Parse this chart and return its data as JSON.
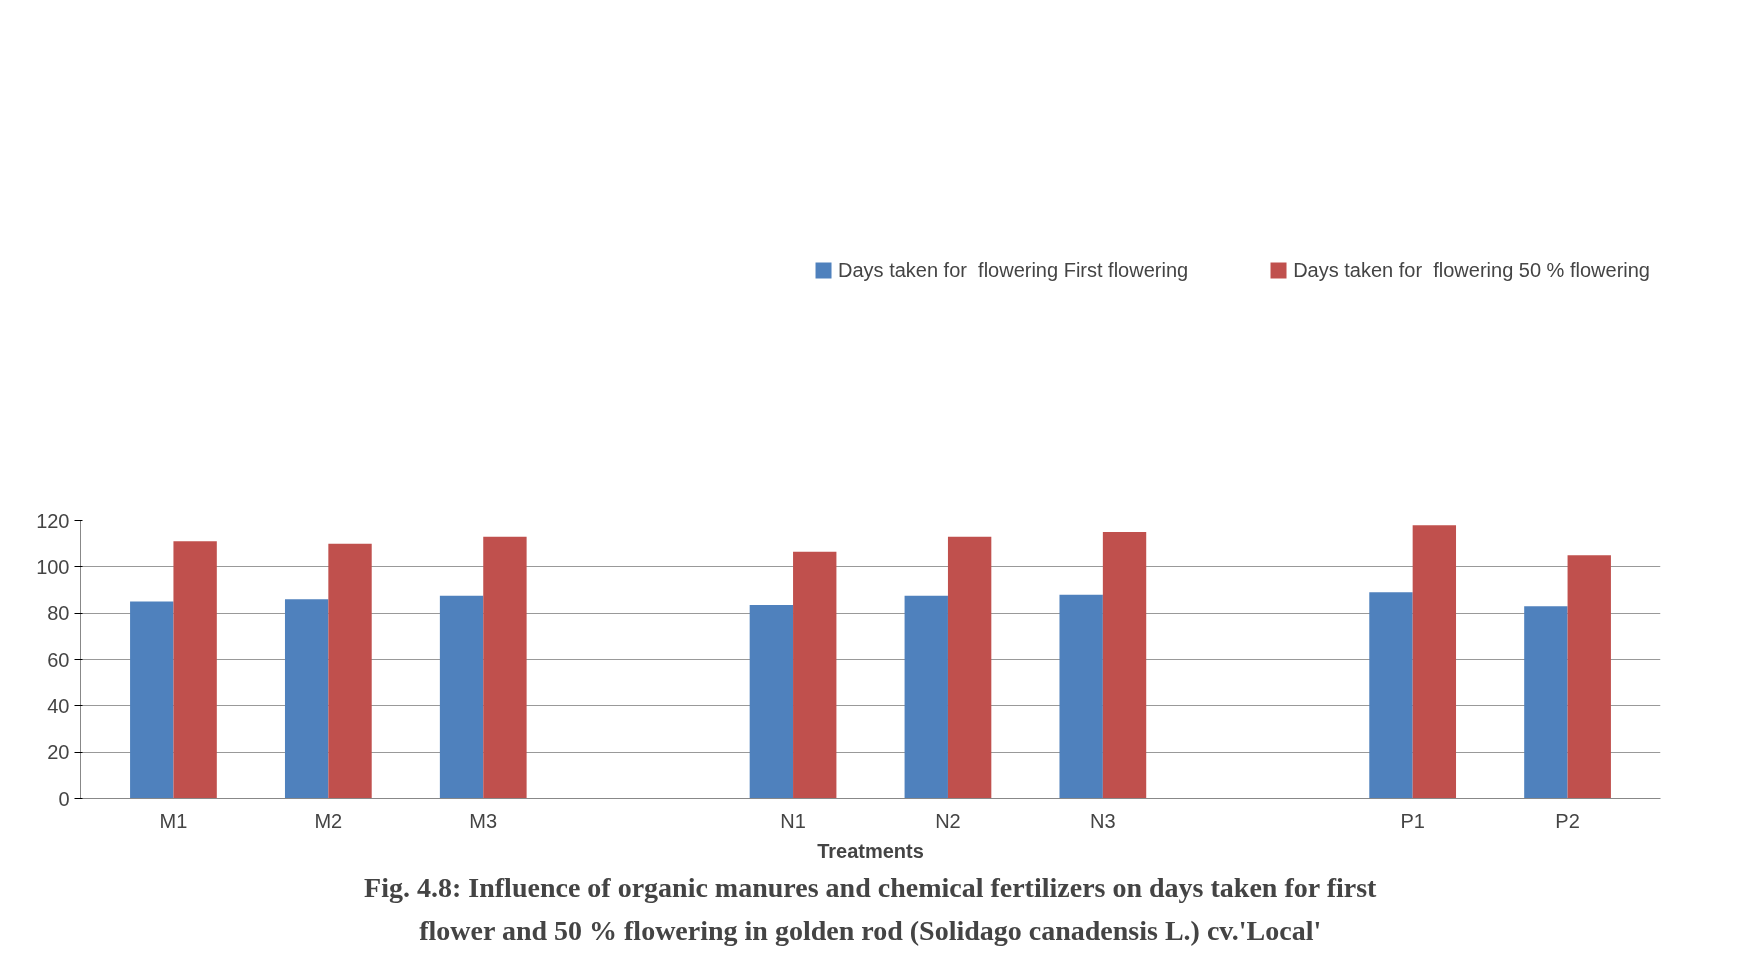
{
  "chart_data": {
    "type": "bar",
    "title": "Fig. 4.8: Influence of organic manures and chemical fertilizers on days taken for first\nflower and 50 % flowering in golden rod (Solidago canadensis L.) cv.'Local'",
    "xlabel": "Treatments",
    "categories": [
      "M1",
      "M2",
      "M3",
      null,
      "N1",
      "N2",
      "N3",
      null,
      "P1",
      "P2"
    ],
    "series": [
      {
        "name": "Days taken for  flowering First flowering",
        "color": "#4f81bd",
        "values": [
          85,
          86,
          87.5,
          null,
          83.5,
          87.5,
          88,
          null,
          89,
          83
        ]
      },
      {
        "name": "Days taken for  flowering 50 % flowering",
        "color": "#c0504d",
        "values": [
          111,
          110,
          113,
          null,
          106.5,
          113,
          115,
          null,
          118,
          105
        ]
      }
    ],
    "ylim": [
      0,
      120
    ],
    "yticks": [
      0,
      20,
      40,
      60,
      80,
      100,
      120
    ],
    "grid": "y",
    "legend": "top"
  }
}
